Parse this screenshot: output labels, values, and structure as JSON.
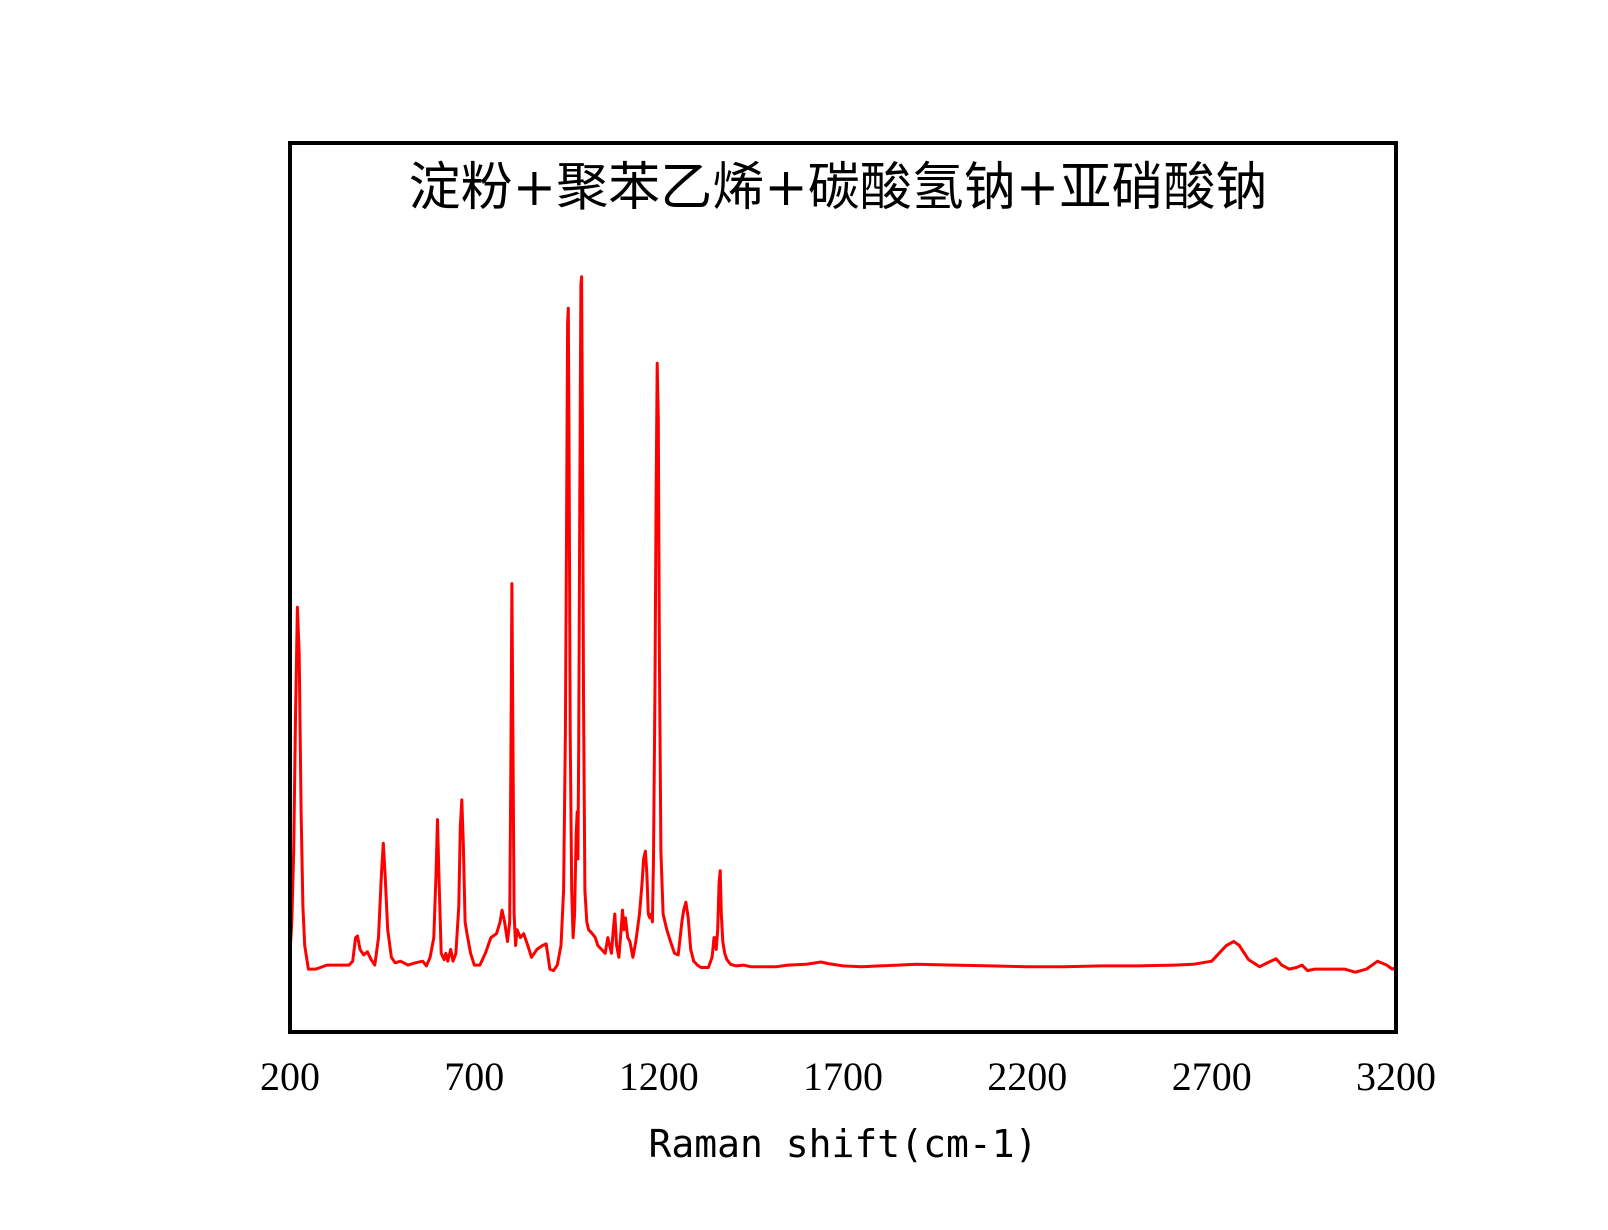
{
  "chart_data": {
    "type": "line",
    "title": "淀粉+聚苯乙烯+碳酸氢钠+亚硝酸钠",
    "xlabel": "Raman shift(cm-1)",
    "ylabel": "",
    "xlim": [
      200,
      3200
    ],
    "ylim": [
      -0.08,
      1.05
    ],
    "x_ticks": [
      "200",
      "700",
      "1200",
      "1700",
      "2200",
      "2700",
      "3200"
    ],
    "y_ticks": [],
    "grid": false,
    "legend": "none",
    "series": [
      {
        "color": "#ff0000",
        "points": [
          [
            200,
            0.02
          ],
          [
            205,
            0.06
          ],
          [
            210,
            0.15
          ],
          [
            215,
            0.32
          ],
          [
            220,
            0.46
          ],
          [
            225,
            0.4
          ],
          [
            230,
            0.2
          ],
          [
            235,
            0.08
          ],
          [
            240,
            0.03
          ],
          [
            250,
            0.0
          ],
          [
            270,
            0.0
          ],
          [
            300,
            0.005
          ],
          [
            320,
            0.005
          ],
          [
            340,
            0.005
          ],
          [
            360,
            0.005
          ],
          [
            370,
            0.01
          ],
          [
            378,
            0.04
          ],
          [
            383,
            0.042
          ],
          [
            390,
            0.025
          ],
          [
            400,
            0.018
          ],
          [
            410,
            0.022
          ],
          [
            420,
            0.012
          ],
          [
            430,
            0.005
          ],
          [
            440,
            0.04
          ],
          [
            448,
            0.12
          ],
          [
            453,
            0.16
          ],
          [
            458,
            0.12
          ],
          [
            465,
            0.05
          ],
          [
            475,
            0.015
          ],
          [
            485,
            0.008
          ],
          [
            500,
            0.01
          ],
          [
            520,
            0.005
          ],
          [
            540,
            0.008
          ],
          [
            560,
            0.01
          ],
          [
            570,
            0.004
          ],
          [
            580,
            0.015
          ],
          [
            590,
            0.04
          ],
          [
            596,
            0.12
          ],
          [
            600,
            0.19
          ],
          [
            604,
            0.12
          ],
          [
            610,
            0.02
          ],
          [
            618,
            0.012
          ],
          [
            623,
            0.02
          ],
          [
            628,
            0.01
          ],
          [
            636,
            0.025
          ],
          [
            642,
            0.01
          ],
          [
            650,
            0.02
          ],
          [
            658,
            0.08
          ],
          [
            662,
            0.18
          ],
          [
            666,
            0.215
          ],
          [
            670,
            0.16
          ],
          [
            675,
            0.06
          ],
          [
            680,
            0.045
          ],
          [
            690,
            0.02
          ],
          [
            700,
            0.005
          ],
          [
            715,
            0.005
          ],
          [
            730,
            0.02
          ],
          [
            745,
            0.04
          ],
          [
            760,
            0.045
          ],
          [
            770,
            0.06
          ],
          [
            775,
            0.075
          ],
          [
            782,
            0.06
          ],
          [
            790,
            0.035
          ],
          [
            796,
            0.06
          ],
          [
            799,
            0.25
          ],
          [
            802,
            0.49
          ],
          [
            805,
            0.28
          ],
          [
            808,
            0.07
          ],
          [
            812,
            0.03
          ],
          [
            816,
            0.05
          ],
          [
            825,
            0.04
          ],
          [
            834,
            0.045
          ],
          [
            845,
            0.03
          ],
          [
            855,
            0.015
          ],
          [
            870,
            0.025
          ],
          [
            885,
            0.03
          ],
          [
            895,
            0.032
          ],
          [
            905,
            0.0
          ],
          [
            915,
            -0.002
          ],
          [
            925,
            0.005
          ],
          [
            935,
            0.03
          ],
          [
            942,
            0.1
          ],
          [
            947,
            0.3
          ],
          [
            950,
            0.55
          ],
          [
            953,
            0.82
          ],
          [
            955,
            0.84
          ],
          [
            957,
            0.65
          ],
          [
            960,
            0.3
          ],
          [
            964,
            0.1
          ],
          [
            968,
            0.04
          ],
          [
            972,
            0.07
          ],
          [
            976,
            0.17
          ],
          [
            979,
            0.2
          ],
          [
            981,
            0.14
          ],
          [
            983,
            0.28
          ],
          [
            986,
            0.6
          ],
          [
            989,
            0.87
          ],
          [
            991,
            0.88
          ],
          [
            993,
            0.7
          ],
          [
            996,
            0.35
          ],
          [
            1000,
            0.1
          ],
          [
            1005,
            0.06
          ],
          [
            1010,
            0.05
          ],
          [
            1020,
            0.045
          ],
          [
            1028,
            0.04
          ],
          [
            1035,
            0.03
          ],
          [
            1045,
            0.025
          ],
          [
            1055,
            0.02
          ],
          [
            1062,
            0.04
          ],
          [
            1067,
            0.03
          ],
          [
            1072,
            0.02
          ],
          [
            1077,
            0.05
          ],
          [
            1081,
            0.07
          ],
          [
            1086,
            0.03
          ],
          [
            1092,
            0.015
          ],
          [
            1098,
            0.05
          ],
          [
            1102,
            0.075
          ],
          [
            1106,
            0.05
          ],
          [
            1110,
            0.065
          ],
          [
            1116,
            0.04
          ],
          [
            1122,
            0.035
          ],
          [
            1130,
            0.015
          ],
          [
            1138,
            0.035
          ],
          [
            1148,
            0.07
          ],
          [
            1155,
            0.11
          ],
          [
            1159,
            0.14
          ],
          [
            1164,
            0.15
          ],
          [
            1168,
            0.12
          ],
          [
            1172,
            0.07
          ],
          [
            1176,
            0.065
          ],
          [
            1180,
            0.07
          ],
          [
            1183,
            0.06
          ],
          [
            1186,
            0.14
          ],
          [
            1190,
            0.36
          ],
          [
            1193,
            0.6
          ],
          [
            1196,
            0.77
          ],
          [
            1199,
            0.7
          ],
          [
            1202,
            0.4
          ],
          [
            1206,
            0.15
          ],
          [
            1212,
            0.07
          ],
          [
            1222,
            0.05
          ],
          [
            1232,
            0.035
          ],
          [
            1243,
            0.02
          ],
          [
            1253,
            0.018
          ],
          [
            1263,
            0.06
          ],
          [
            1268,
            0.075
          ],
          [
            1274,
            0.085
          ],
          [
            1280,
            0.065
          ],
          [
            1287,
            0.025
          ],
          [
            1295,
            0.01
          ],
          [
            1305,
            0.005
          ],
          [
            1315,
            0.002
          ],
          [
            1325,
            0.002
          ],
          [
            1335,
            0.002
          ],
          [
            1345,
            0.015
          ],
          [
            1350,
            0.04
          ],
          [
            1353,
            0.04
          ],
          [
            1356,
            0.025
          ],
          [
            1360,
            0.05
          ],
          [
            1364,
            0.11
          ],
          [
            1367,
            0.125
          ],
          [
            1370,
            0.07
          ],
          [
            1374,
            0.035
          ],
          [
            1379,
            0.02
          ],
          [
            1385,
            0.012
          ],
          [
            1395,
            0.006
          ],
          [
            1410,
            0.004
          ],
          [
            1430,
            0.005
          ],
          [
            1450,
            0.003
          ],
          [
            1480,
            0.003
          ],
          [
            1520,
            0.003
          ],
          [
            1550,
            0.005
          ],
          [
            1600,
            0.006
          ],
          [
            1640,
            0.009
          ],
          [
            1660,
            0.007
          ],
          [
            1700,
            0.004
          ],
          [
            1750,
            0.003
          ],
          [
            1800,
            0.004
          ],
          [
            1850,
            0.005
          ],
          [
            1900,
            0.006
          ],
          [
            2000,
            0.005
          ],
          [
            2100,
            0.004
          ],
          [
            2200,
            0.003
          ],
          [
            2300,
            0.003
          ],
          [
            2400,
            0.004
          ],
          [
            2500,
            0.004
          ],
          [
            2600,
            0.005
          ],
          [
            2650,
            0.006
          ],
          [
            2700,
            0.01
          ],
          [
            2720,
            0.02
          ],
          [
            2740,
            0.03
          ],
          [
            2760,
            0.035
          ],
          [
            2775,
            0.03
          ],
          [
            2800,
            0.012
          ],
          [
            2830,
            0.003
          ],
          [
            2860,
            0.01
          ],
          [
            2875,
            0.013
          ],
          [
            2890,
            0.005
          ],
          [
            2910,
            0.0
          ],
          [
            2930,
            0.002
          ],
          [
            2945,
            0.005
          ],
          [
            2960,
            -0.002
          ],
          [
            2980,
            0.0
          ],
          [
            3000,
            0.0
          ],
          [
            3030,
            0.0
          ],
          [
            3060,
            0.0
          ],
          [
            3090,
            -0.004
          ],
          [
            3120,
            0.0
          ],
          [
            3150,
            0.01
          ],
          [
            3175,
            0.005
          ],
          [
            3190,
            0.0
          ],
          [
            3200,
            0.002
          ]
        ]
      }
    ]
  }
}
